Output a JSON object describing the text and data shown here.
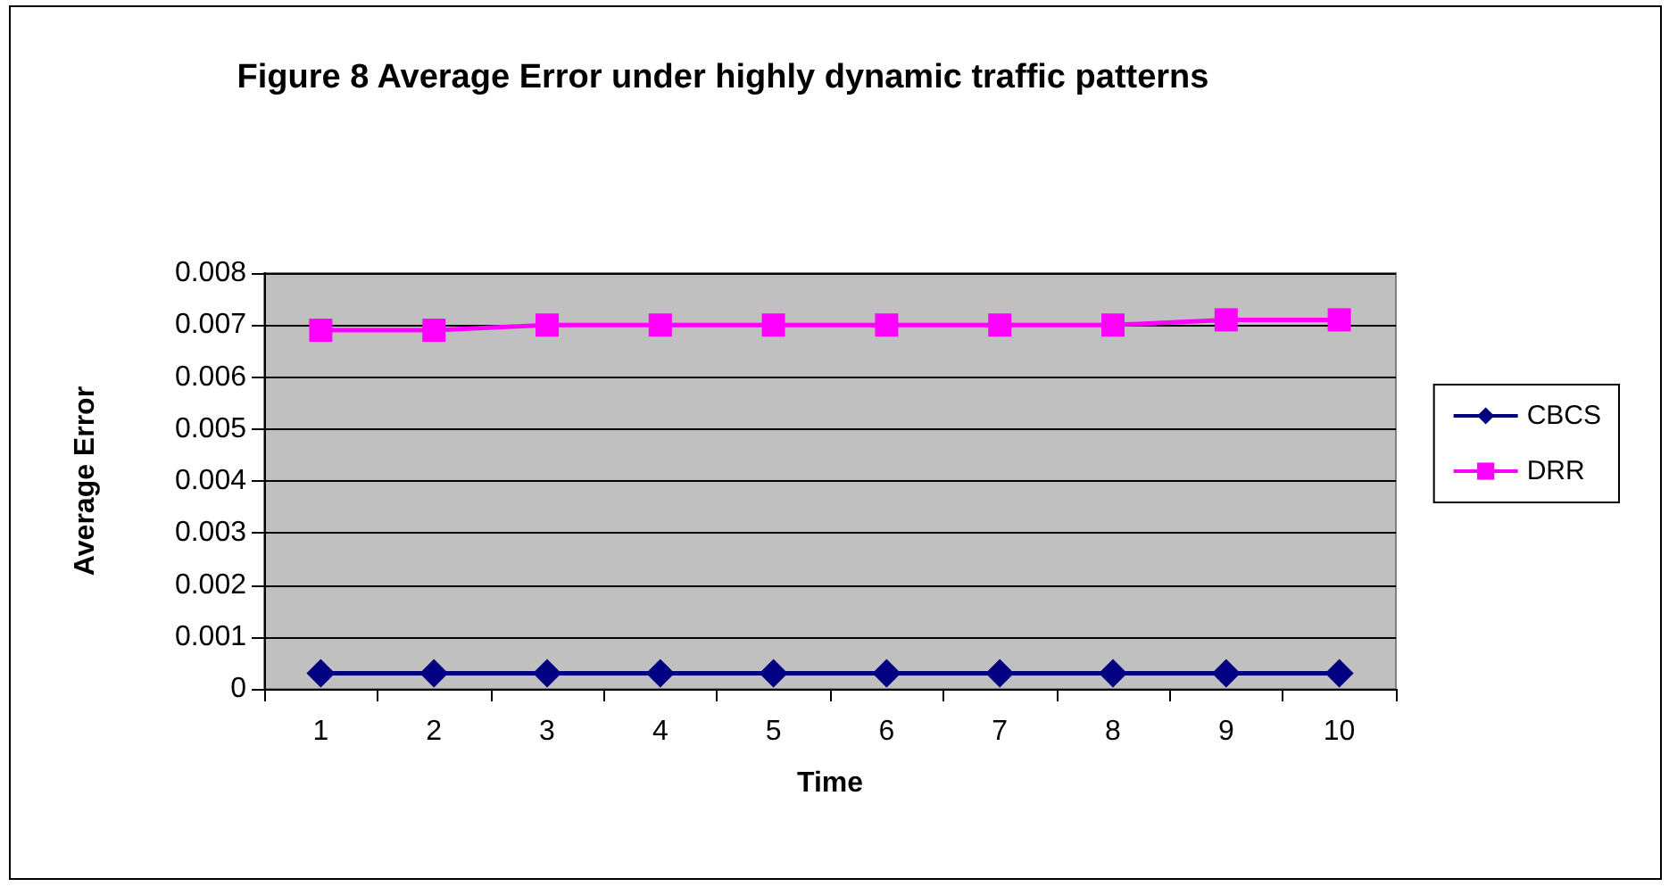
{
  "chart_data": {
    "type": "line",
    "title": "Figure 8 Average Error under highly dynamic traffic patterns",
    "xlabel": "Time",
    "ylabel": "Average Error",
    "categories": [
      "1",
      "2",
      "3",
      "4",
      "5",
      "6",
      "7",
      "8",
      "9",
      "10"
    ],
    "series": [
      {
        "name": "CBCS",
        "color": "#000080",
        "marker": "diamond",
        "values": [
          0.0003,
          0.0003,
          0.0003,
          0.0003,
          0.0003,
          0.0003,
          0.0003,
          0.0003,
          0.0003,
          0.0003
        ]
      },
      {
        "name": "DRR",
        "color": "#ff00ff",
        "marker": "square",
        "values": [
          0.0069,
          0.0069,
          0.007,
          0.007,
          0.007,
          0.007,
          0.007,
          0.007,
          0.0071,
          0.0071
        ]
      }
    ],
    "ylim": [
      0,
      0.008
    ],
    "yticks": [
      0,
      0.001,
      0.002,
      0.003,
      0.004,
      0.005,
      0.006,
      0.007,
      0.008
    ],
    "grid": "y",
    "legend": "right"
  }
}
